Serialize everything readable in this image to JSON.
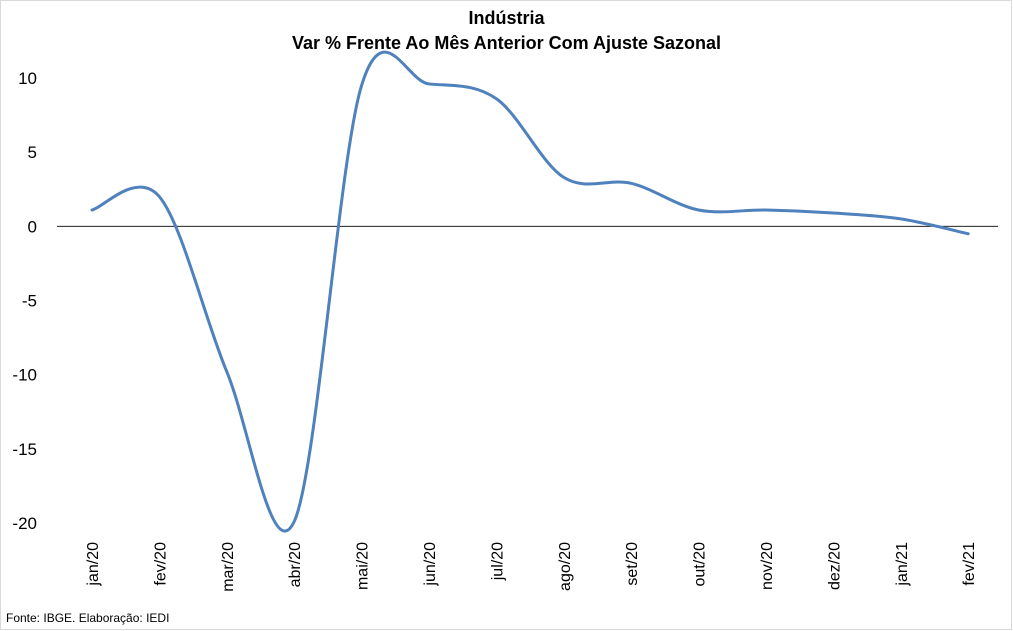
{
  "chart_data": {
    "type": "line",
    "title": "Indústria",
    "subtitle": "Var % Frente Ao Mês Anterior Com Ajuste Sazonal",
    "xlabel": "",
    "ylabel": "",
    "categories": [
      "jan/20",
      "fev/20",
      "mar/20",
      "abr/20",
      "mai/20",
      "jun/20",
      "jul/20",
      "ago/20",
      "set/20",
      "out/20",
      "nov/20",
      "dez/20",
      "jan/21",
      "fev/21"
    ],
    "series": [
      {
        "values": [
          1.1,
          2.0,
          -9.8,
          -19.9,
          9.5,
          9.6,
          8.6,
          3.3,
          2.9,
          1.1,
          1.1,
          0.9,
          0.5,
          -0.5
        ]
      }
    ],
    "ylim": [
      -20,
      10
    ],
    "yticks": [
      "10",
      "5",
      "0",
      "-5",
      "-10",
      "-15",
      "-20"
    ],
    "grid": false,
    "legend": "none",
    "line_color": "#4F81BD"
  },
  "footer": {
    "source": "Fonte: IBGE. Elaboração: IEDI"
  }
}
